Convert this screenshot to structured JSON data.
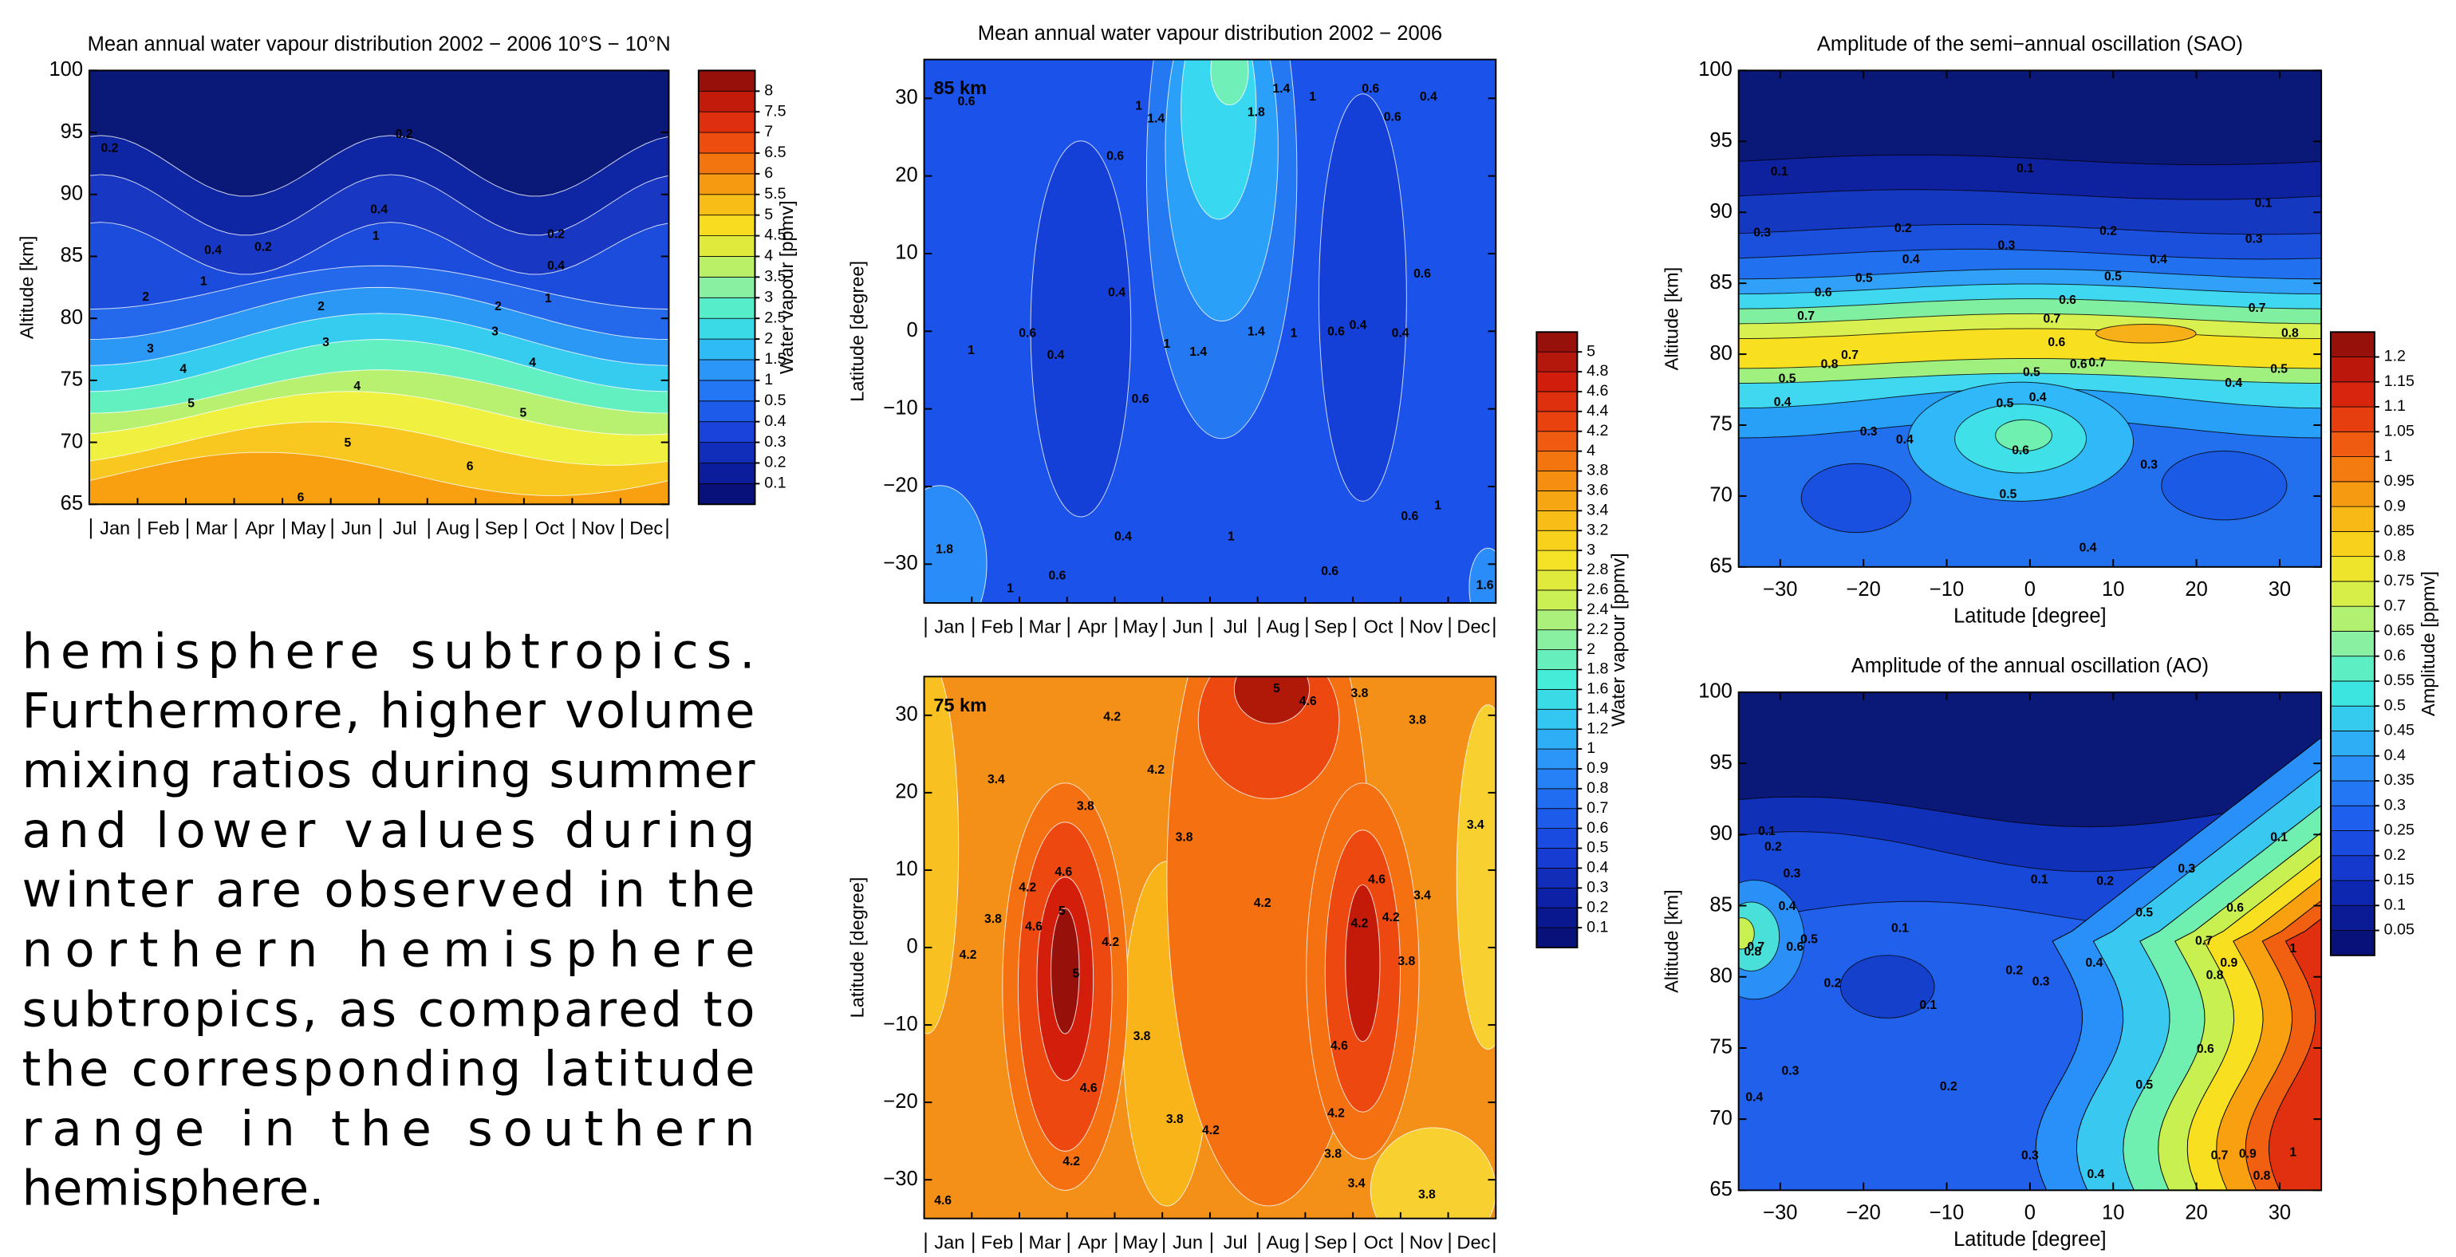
{
  "chart_data": [
    {
      "type": "contour",
      "title": "Mean annual water vapour distribution 2002 − 2006 10°S − 10°N",
      "ylabel": "Altitude [km]",
      "categories": [
        "Jan",
        "Feb",
        "Mar",
        "Apr",
        "May",
        "Jun",
        "Jul",
        "Aug",
        "Sep",
        "Oct",
        "Nov",
        "Dec"
      ],
      "ylim": [
        65,
        100
      ],
      "yticks": [
        65,
        70,
        75,
        80,
        85,
        90,
        95,
        100
      ],
      "colorbar": {
        "label": "Water vapour [ppmv]",
        "ticks": [
          0.1,
          0.2,
          0.3,
          0.4,
          0.5,
          1,
          1.5,
          2,
          2.5,
          3,
          3.5,
          4,
          4.5,
          5,
          5.5,
          6,
          6.5,
          7,
          7.5,
          8
        ]
      },
      "contour_labels": [
        0.2,
        0.2,
        0.4,
        0.4,
        0.2,
        0.2,
        0.4,
        1,
        1,
        1,
        2,
        2,
        2,
        3,
        3,
        3,
        4,
        4,
        4,
        5,
        5,
        5,
        6,
        6
      ]
    },
    {
      "type": "contour",
      "title": "Mean annual water vapour distribution 2002 − 2006",
      "annotation": "85 km",
      "ylabel": "Latitude [degree]",
      "categories": [
        "Jan",
        "Feb",
        "Mar",
        "Apr",
        "May",
        "Jun",
        "Jul",
        "Aug",
        "Sep",
        "Oct",
        "Nov",
        "Dec"
      ],
      "ylim": [
        -35,
        35
      ],
      "yticks": [
        {
          "value": -30,
          "label": "−30"
        },
        {
          "value": -20,
          "label": "−20"
        },
        {
          "value": -10,
          "label": "−10"
        },
        0,
        10,
        20,
        30
      ],
      "colorbar": {
        "label": "Water vapour [ppmv]",
        "ticks": [
          0.1,
          0.2,
          0.3,
          0.4,
          0.5,
          0.6,
          0.7,
          0.8,
          0.9,
          1,
          1.2,
          1.4,
          1.6,
          1.8,
          2,
          2.2,
          2.4,
          2.6,
          2.8,
          3,
          3.2,
          3.4,
          3.6,
          3.8,
          4,
          4.2,
          4.4,
          4.6,
          4.8,
          5
        ]
      },
      "contour_labels": [
        0.6,
        1,
        1.4,
        1.8,
        1.4,
        1,
        0.6,
        0.6,
        0.4,
        0.6,
        0.4,
        0.6,
        0.4,
        1,
        1,
        1.4,
        1.4,
        1,
        0.6,
        0.4,
        0.4,
        0.6,
        0.6,
        0.4,
        0.6,
        1,
        1.8,
        1,
        0.6,
        0.6,
        1,
        1.6
      ]
    },
    {
      "type": "contour",
      "annotation": "75 km",
      "ylabel": "Latitude [degree]",
      "categories": [
        "Jan",
        "Feb",
        "Mar",
        "Apr",
        "May",
        "Jun",
        "Jul",
        "Aug",
        "Sep",
        "Oct",
        "Nov",
        "Dec"
      ],
      "ylim": [
        -35,
        35
      ],
      "yticks": [
        {
          "value": -30,
          "label": "−30"
        },
        {
          "value": -20,
          "label": "−20"
        },
        {
          "value": -10,
          "label": "−10"
        },
        0,
        10,
        20,
        30
      ],
      "contour_labels": [
        4.2,
        4.2,
        3.8,
        3.4,
        5,
        4.6,
        3.8,
        3.8,
        4.6,
        4.2,
        3.8,
        4.2,
        5,
        4.6,
        5,
        4.2,
        3.8,
        4.2,
        4.6,
        4.2,
        3.4,
        3.8,
        4.2,
        4.6,
        4.2,
        3.8,
        4.6,
        4.2,
        3.8,
        4.2,
        3.8,
        3.4,
        3.8,
        4.6,
        3.4
      ]
    },
    {
      "type": "contour",
      "title": "Amplitude of the semi−annual oscillation (SAO)",
      "xlabel": "Latitude [degree]",
      "ylabel": "Altitude [km]",
      "xlim": [
        -35,
        35
      ],
      "xticks": [
        {
          "value": -30,
          "label": "−30"
        },
        {
          "value": -20,
          "label": "−20"
        },
        {
          "value": -10,
          "label": "−10"
        },
        0,
        10,
        20,
        30
      ],
      "ylim": [
        65,
        100
      ],
      "yticks": [
        65,
        70,
        75,
        80,
        85,
        90,
        95,
        100
      ],
      "colorbar": {
        "label": "Amplitude [ppmv]",
        "ticks": [
          0.05,
          0.1,
          0.15,
          0.2,
          0.25,
          0.3,
          0.35,
          0.4,
          0.45,
          0.5,
          0.55,
          0.6,
          0.65,
          0.7,
          0.75,
          0.8,
          0.85,
          0.9,
          0.95,
          1,
          1.05,
          1.1,
          1.15,
          1.2
        ]
      },
      "contour_labels": [
        0.1,
        0.1,
        0.1,
        0.3,
        0.2,
        0.3,
        0.2,
        0.3,
        0.4,
        0.4,
        0.5,
        0.5,
        0.6,
        0.6,
        0.7,
        0.7,
        0.7,
        0.6,
        0.8,
        0.8,
        0.7,
        0.7,
        0.5,
        0.6,
        0.5,
        0.5,
        0.4,
        0.4,
        0.4,
        0.5,
        0.3,
        0.4,
        0.6,
        0.5,
        0.3,
        0.4
      ]
    },
    {
      "type": "contour",
      "title": "Amplitude of the annual oscillation (AO)",
      "xlabel": "Latitude [degree]",
      "ylabel": "Altitude [km]",
      "xlim": [
        -35,
        35
      ],
      "xticks": [
        {
          "value": -30,
          "label": "−30"
        },
        {
          "value": -20,
          "label": "−20"
        },
        {
          "value": -10,
          "label": "−10"
        },
        0,
        10,
        20,
        30
      ],
      "ylim": [
        65,
        100
      ],
      "yticks": [
        65,
        70,
        75,
        80,
        85,
        90,
        95,
        100
      ],
      "contour_labels": [
        0.1,
        0.2,
        0.3,
        0.4,
        0.5,
        0.6,
        0.7,
        0.8,
        0.1,
        0.2,
        0.1,
        0.1,
        0.2,
        0.3,
        0.1,
        0.5,
        0.6,
        0.7,
        0.2,
        0.3,
        0.4,
        0.8,
        0.9,
        1,
        0.2,
        0.3,
        0.4,
        0.5,
        0.6,
        0.4,
        0.3,
        0.7,
        0.8,
        0.9,
        1
      ]
    }
  ],
  "text": {
    "lines": [
      "hemisphere subtropics.",
      "Furthermore, higher volume",
      "mixing ratios during summer",
      "and lower values during",
      "winter are observed in the",
      "northern hemisphere",
      "subtropics, as compared to",
      "the corresponding latitude",
      "range in the southern",
      "hemisphere."
    ]
  }
}
